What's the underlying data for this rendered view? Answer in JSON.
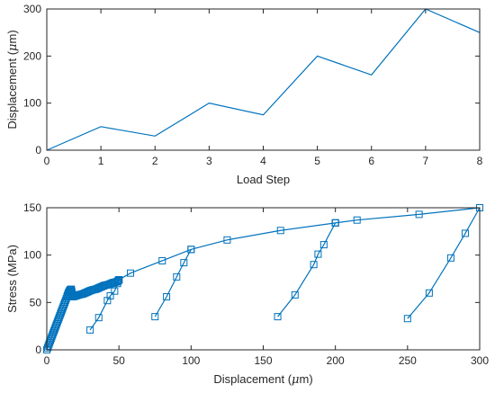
{
  "chart_data": [
    {
      "type": "line",
      "title": "",
      "xlabel": "Load Step",
      "ylabel_pre": "Displacement (",
      "ylabel_mu": "μ",
      "ylabel_post": "m)",
      "xlim": [
        0,
        8
      ],
      "ylim": [
        0,
        300
      ],
      "xticks": [
        0,
        1,
        2,
        3,
        4,
        5,
        6,
        7,
        8
      ],
      "yticks": [
        0,
        100,
        200,
        300
      ],
      "grid": false,
      "series": [
        {
          "x": [
            0,
            1,
            2,
            3,
            4,
            5,
            6,
            7,
            8
          ],
          "y": [
            0,
            50,
            30,
            100,
            75,
            200,
            160,
            300,
            250
          ],
          "color": "#0072BD"
        }
      ]
    },
    {
      "type": "line",
      "title": "",
      "xlabel_pre": "Displacement (",
      "xlabel_mu": "μ",
      "xlabel_post": "m)",
      "ylabel": "Stress (MPa)",
      "xlim": [
        0,
        300
      ],
      "ylim": [
        0,
        150
      ],
      "xticks": [
        0,
        50,
        100,
        150,
        200,
        250,
        300
      ],
      "yticks": [
        0,
        50,
        100,
        150
      ],
      "grid": false,
      "marker": "square-open",
      "color": "#0072BD",
      "segments": [
        {
          "x": [
            0,
            2,
            4,
            6,
            8,
            10,
            12,
            14,
            15,
            16,
            17,
            18,
            20,
            22,
            25,
            28,
            31,
            34,
            37,
            40,
            43,
            46,
            49,
            50
          ],
          "y": [
            0,
            8,
            16,
            24,
            32,
            40,
            48,
            56,
            60,
            63,
            64,
            56,
            57,
            58,
            59,
            61,
            63,
            64,
            66,
            68,
            69,
            71,
            72,
            74
          ]
        },
        {
          "x": [
            30,
            36,
            42,
            44,
            47,
            49,
            50
          ],
          "y": [
            21,
            34,
            52,
            57,
            62,
            70,
            74
          ]
        },
        {
          "x": [
            50,
            58,
            80,
            100,
            125,
            162,
            200
          ],
          "y": [
            74,
            81,
            94,
            106,
            116,
            126,
            134
          ]
        },
        {
          "x": [
            75,
            83,
            90,
            95,
            100
          ],
          "y": [
            35,
            56,
            77,
            92,
            106
          ]
        },
        {
          "x": [
            200,
            215,
            258,
            300
          ],
          "y": [
            134,
            137,
            143,
            150
          ]
        },
        {
          "x": [
            160,
            172,
            185,
            188,
            192,
            200
          ],
          "y": [
            35,
            58,
            90,
            101,
            111,
            134
          ]
        },
        {
          "x": [
            250,
            265,
            280,
            290,
            300
          ],
          "y": [
            33,
            60,
            97,
            123,
            150
          ]
        }
      ]
    }
  ]
}
